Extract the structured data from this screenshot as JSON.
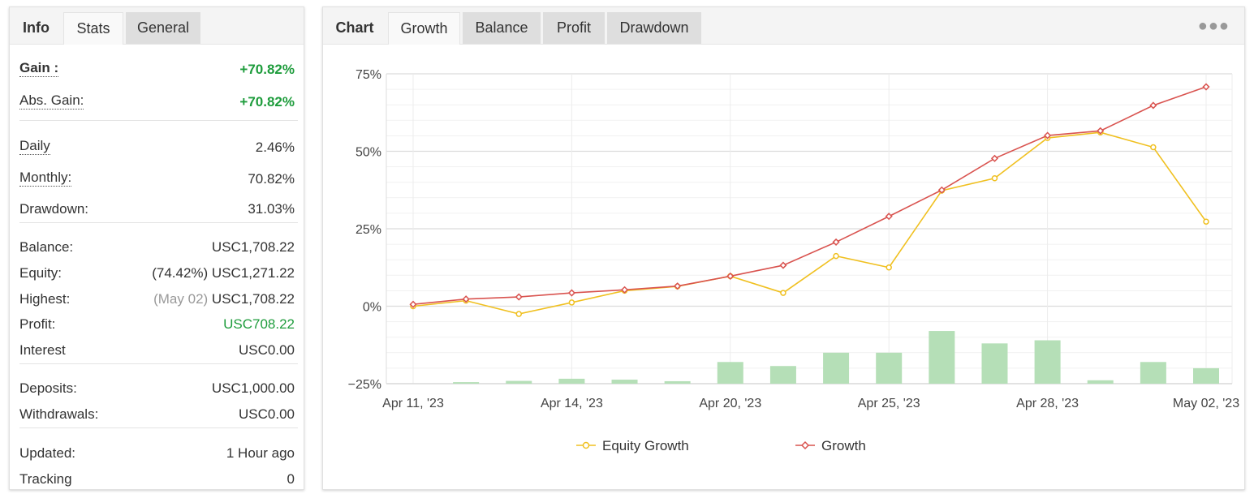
{
  "left_tabs": [
    {
      "label": "Info"
    },
    {
      "label": "Stats"
    },
    {
      "label": "General"
    }
  ],
  "stats": {
    "gain": {
      "label": "Gain :",
      "value": "+70.82%"
    },
    "abs_gain": {
      "label": "Abs. Gain:",
      "value": "+70.82%"
    },
    "daily": {
      "label": "Daily",
      "value": "2.46%"
    },
    "monthly": {
      "label": "Monthly:",
      "value": "70.82%"
    },
    "drawdown": {
      "label": "Drawdown:",
      "value": "31.03%"
    },
    "balance": {
      "label": "Balance:",
      "value": "USC1,708.22"
    },
    "equity": {
      "label": "Equity:",
      "prefix": "(74.42%)",
      "value": "USC1,271.22"
    },
    "highest": {
      "label": "Highest:",
      "prefix": "(May 02)",
      "value": "USC1,708.22"
    },
    "profit": {
      "label": "Profit:",
      "value": "USC708.22"
    },
    "interest": {
      "label": "Interest",
      "value": "USC0.00"
    },
    "deposits": {
      "label": "Deposits:",
      "value": "USC1,000.00"
    },
    "withdrawals": {
      "label": "Withdrawals:",
      "value": "USC0.00"
    },
    "updated": {
      "label": "Updated:",
      "value": "1 Hour ago"
    },
    "tracking": {
      "label": "Tracking",
      "value": "0"
    }
  },
  "right_tabs": [
    {
      "label": "Chart"
    },
    {
      "label": "Growth"
    },
    {
      "label": "Balance"
    },
    {
      "label": "Profit"
    },
    {
      "label": "Drawdown"
    }
  ],
  "more_icon": "ellipsis-icon",
  "colors": {
    "growth": "#d9534f",
    "equity": "#f0c020",
    "bars": "#b5dfb7",
    "positive": "#1e9c3c"
  },
  "chart_data": {
    "type": "line",
    "x_tick_labels": [
      "Apr 11, '23",
      "Apr 14, '23",
      "Apr 20, '23",
      "Apr 25, '23",
      "Apr 28, '23",
      "May 02, '23"
    ],
    "x_tick_index": [
      0,
      3,
      6,
      9,
      12,
      15
    ],
    "y_tick_labels": [
      "75%",
      "50%",
      "25%",
      "0%",
      "−25%"
    ],
    "y_tick_values": [
      75,
      50,
      25,
      0,
      -25
    ],
    "ylim": [
      -25,
      75
    ],
    "grid": true,
    "legend_position": "bottom",
    "point_count": 16,
    "series": [
      {
        "name": "Equity Growth",
        "values": [
          0,
          1.8,
          -2.5,
          1.2,
          5.0,
          6.4,
          9.7,
          4.3,
          16.2,
          12.5,
          37.3,
          41.3,
          54.3,
          56.1,
          51.3,
          27.3
        ]
      },
      {
        "name": "Growth",
        "values": [
          0.6,
          2.3,
          3.0,
          4.3,
          5.3,
          6.5,
          9.7,
          13.2,
          20.7,
          29.0,
          37.5,
          47.7,
          55.1,
          56.6,
          64.8,
          70.8
        ]
      }
    ],
    "bars": {
      "values": [
        0,
        0.5,
        0.9,
        1.6,
        1.3,
        0.8,
        7.0,
        5.7,
        10.0,
        10.0,
        17.0,
        13.0,
        14.0,
        1.1,
        7.0,
        5.0
      ]
    }
  }
}
